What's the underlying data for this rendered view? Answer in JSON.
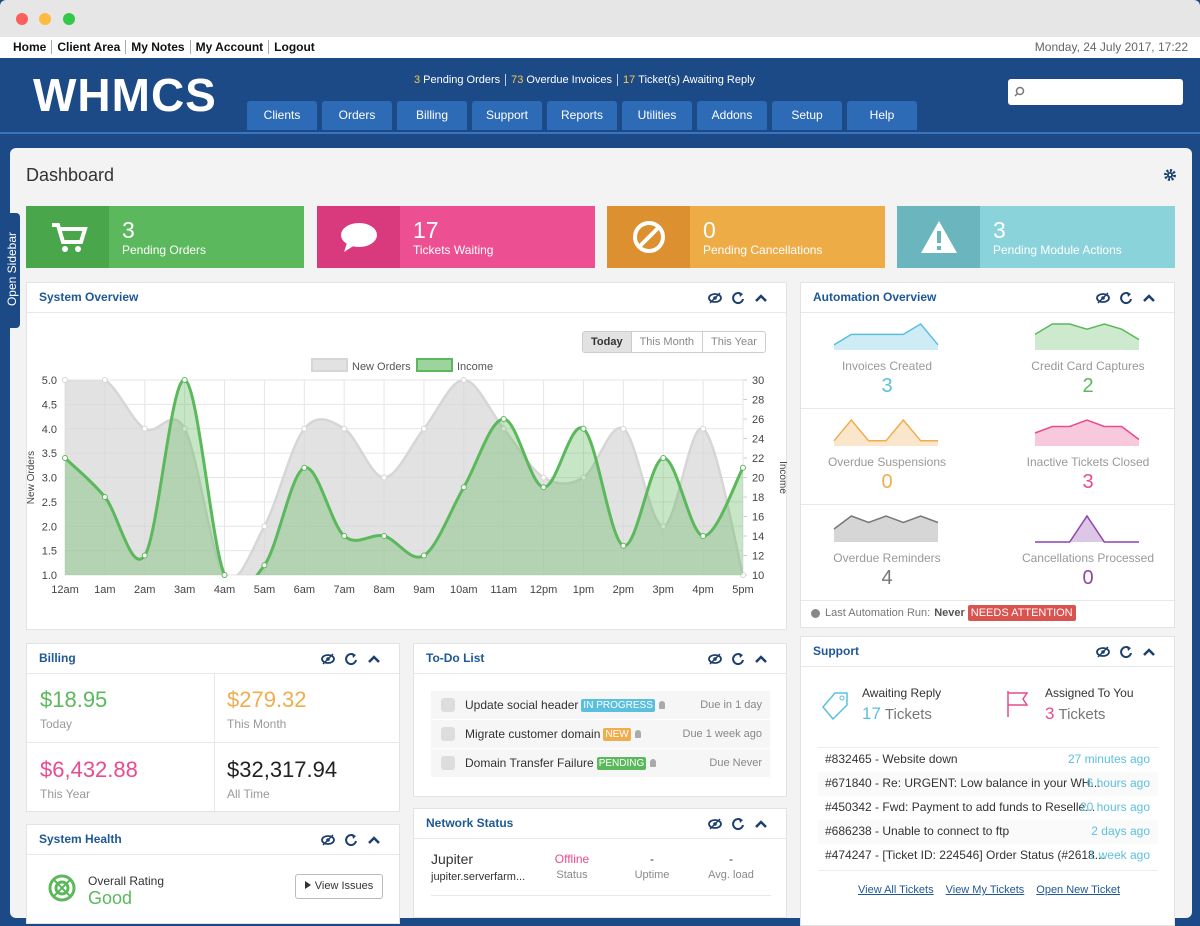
{
  "top_links": [
    "Home",
    "Client Area",
    "My Notes",
    "My Account",
    "Logout"
  ],
  "datetime": "Monday, 24 July 2017, 17:22",
  "logo": "WHMCS",
  "alerts": [
    {
      "count": 3,
      "text": "Pending Orders"
    },
    {
      "count": 73,
      "text": "Overdue Invoices"
    },
    {
      "count": 17,
      "text": "Ticket(s) Awaiting Reply"
    }
  ],
  "menu": [
    "Clients",
    "Orders",
    "Billing",
    "Support",
    "Reports",
    "Utilities",
    "Addons",
    "Setup",
    "Help"
  ],
  "sidebar_toggle": "Open Sidebar",
  "page_title": "Dashboard",
  "stats": [
    {
      "count": 3,
      "label": "Pending Orders",
      "color": "#5cb85c",
      "icon_color": "#4aa64a"
    },
    {
      "count": 17,
      "label": "Tickets Waiting",
      "color": "#ec5093",
      "icon_color": "#d93a7e"
    },
    {
      "count": 0,
      "label": "Pending Cancellations",
      "color": "#eeac47",
      "icon_color": "#dc9030"
    },
    {
      "count": 3,
      "label": "Pending Module Actions",
      "color": "#8bd3db",
      "icon_color": "#6bb5be"
    }
  ],
  "system_overview": {
    "title": "System Overview",
    "ranges": [
      "Today",
      "This Month",
      "This Year"
    ],
    "selected_range": 0
  },
  "chart_data": {
    "type": "line",
    "categories": [
      "12am",
      "1am",
      "2am",
      "3am",
      "4am",
      "5am",
      "6am",
      "7am",
      "8am",
      "9am",
      "10am",
      "11am",
      "12pm",
      "1pm",
      "2pm",
      "3pm",
      "4pm",
      "5pm"
    ],
    "series": [
      {
        "name": "New Orders",
        "color": "#d6d6d6",
        "values": [
          5,
          5,
          4,
          4,
          1,
          2,
          4,
          4,
          3,
          4,
          5,
          4,
          3,
          3,
          4,
          2,
          4,
          1
        ]
      },
      {
        "name": "Income",
        "color": "#5cb85c",
        "axis": "y2",
        "values": [
          22,
          18,
          12,
          30,
          10,
          11,
          21,
          14,
          14,
          12,
          19,
          26,
          19,
          25,
          13,
          22,
          14,
          21
        ]
      }
    ],
    "ylabel": "New Orders",
    "y2label": "Income",
    "ylim": [
      1,
      5
    ],
    "yticks": [
      {
        "value": 1,
        "label": "1.0"
      },
      1.5,
      {
        "value": 2,
        "label": "2.0"
      },
      2.5,
      {
        "value": 3,
        "label": "3.0"
      },
      3.5,
      {
        "value": 4,
        "label": "4.0"
      },
      4.5,
      {
        "value": 5,
        "label": "5.0"
      }
    ],
    "y2lim": [
      10,
      30
    ],
    "y2ticks": [
      10,
      12,
      14,
      16,
      18,
      20,
      22,
      24,
      26,
      28,
      30
    ],
    "grid": true,
    "legend": "top"
  },
  "automation": {
    "title": "Automation Overview",
    "items": [
      {
        "label": "Invoices Created",
        "value": 3,
        "color": "#5bc0de",
        "trend": [
          1,
          3,
          3,
          3,
          3,
          5,
          1
        ]
      },
      {
        "label": "Credit Card Captures",
        "value": 2,
        "color": "#5cb85c",
        "trend": [
          3,
          5,
          5,
          4,
          5,
          4,
          2
        ]
      },
      {
        "label": "Overdue Suspensions",
        "value": 0,
        "color": "#f0ad4e",
        "trend": [
          1,
          5,
          1,
          1,
          5,
          1,
          1
        ]
      },
      {
        "label": "Inactive Tickets Closed",
        "value": 3,
        "color": "#e94b8f",
        "trend": [
          2,
          3,
          3,
          4,
          3,
          3,
          1
        ]
      },
      {
        "label": "Overdue Reminders",
        "value": 4,
        "color": "#777777",
        "trend": [
          2,
          4,
          3,
          4,
          3,
          4,
          3
        ]
      },
      {
        "label": "Cancellations Processed",
        "value": 0,
        "color": "#8e44ad",
        "trend": [
          0,
          0,
          0,
          5,
          0,
          0,
          0
        ]
      }
    ],
    "last_run_label": "Last Automation Run:",
    "last_run": "Never",
    "status": "NEEDS ATTENTION"
  },
  "billing": {
    "title": "Billing",
    "items": [
      {
        "amount": "$18.95",
        "label": "Today",
        "color": "#5cb85c"
      },
      {
        "amount": "$279.32",
        "label": "This Month",
        "color": "#f0ad4e"
      },
      {
        "amount": "$6,432.88",
        "label": "This Year",
        "color": "#e94b8f"
      },
      {
        "amount": "$32,317.94",
        "label": "All Time",
        "color": "#222222"
      }
    ]
  },
  "todo": {
    "title": "To-Do List",
    "items": [
      {
        "task": "Update social header",
        "status": "IN PROGRESS",
        "status_color": "#5bc0de",
        "due": "Due in 1 day"
      },
      {
        "task": "Migrate customer domain",
        "status": "NEW",
        "status_color": "#f0ad4e",
        "due": "Due 1 week ago"
      },
      {
        "task": "Domain Transfer Failure",
        "status": "PENDING",
        "status_color": "#5cb85c",
        "due": "Due Never"
      }
    ]
  },
  "health": {
    "title": "System Health",
    "label": "Overall Rating",
    "rating": "Good",
    "button": "View Issues"
  },
  "network": {
    "title": "Network Status",
    "servers": [
      {
        "name": "Jupiter",
        "host": "jupiter.serverfarm...",
        "status": "Offline",
        "status_label": "Status",
        "uptime": "-",
        "uptime_label": "Uptime",
        "load": "-",
        "load_label": "Avg. load"
      }
    ]
  },
  "support": {
    "title": "Support",
    "awaiting_label": "Awaiting Reply",
    "awaiting": 17,
    "awaiting_unit": "Tickets",
    "assigned_label": "Assigned To You",
    "assigned": 3,
    "assigned_unit": "Tickets",
    "tickets": [
      {
        "subject": "#832465 - Website down",
        "age": "27 minutes ago"
      },
      {
        "subject": "#671840 - Re: URGENT: Low balance in your WH...",
        "age": "6 hours ago"
      },
      {
        "subject": "#450342 - Fwd: Payment to add funds to Reselle...",
        "age": "20 hours ago"
      },
      {
        "subject": "#686238 - Unable to connect to ftp",
        "age": "2 days ago"
      },
      {
        "subject": "#474247 - [Ticket ID: 224546] Order Status (#2618...",
        "age": "1 week ago"
      }
    ],
    "links": [
      "View All Tickets",
      "View My Tickets",
      "Open New Ticket"
    ]
  }
}
